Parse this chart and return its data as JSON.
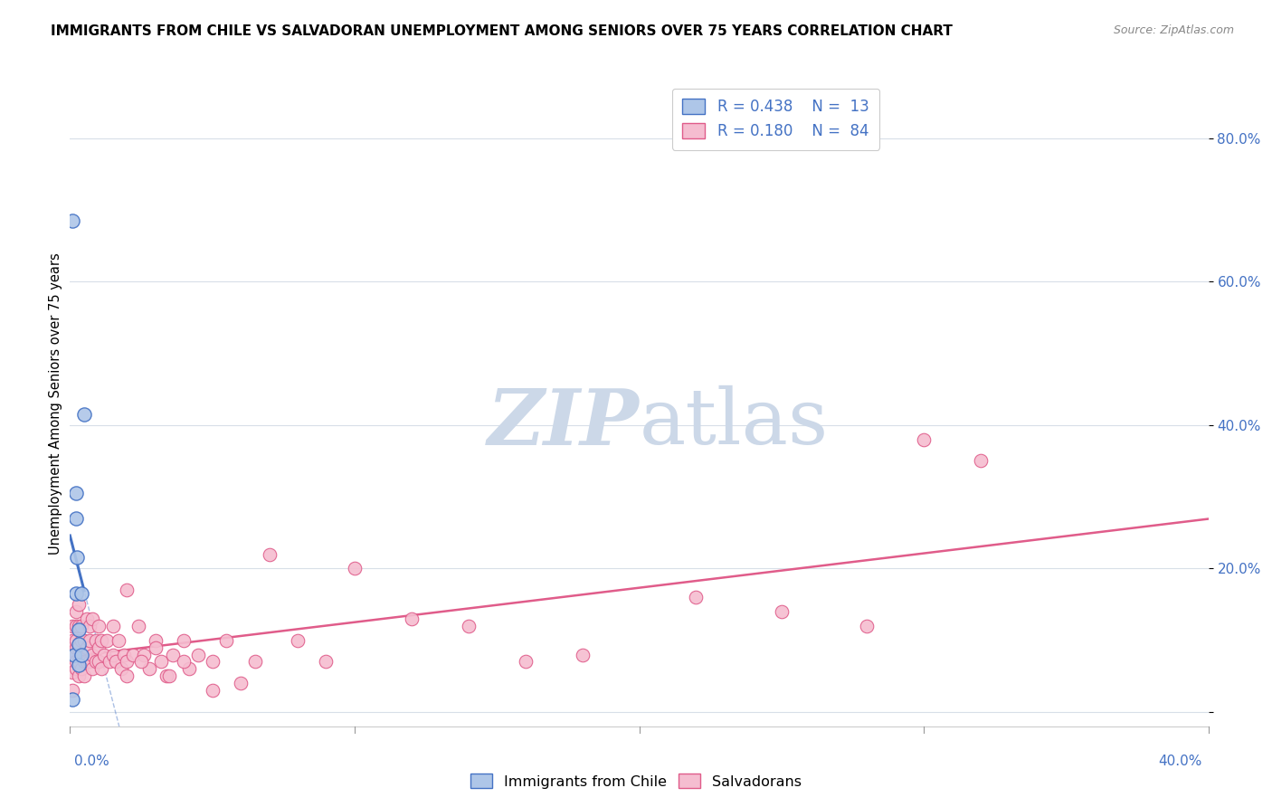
{
  "title": "IMMIGRANTS FROM CHILE VS SALVADORAN UNEMPLOYMENT AMONG SENIORS OVER 75 YEARS CORRELATION CHART",
  "source": "Source: ZipAtlas.com",
  "ylabel": "Unemployment Among Seniors over 75 years",
  "color_blue_fill": "#aec6e8",
  "color_blue_edge": "#4472C4",
  "color_blue_line": "#4472C4",
  "color_pink_fill": "#f5bdd0",
  "color_pink_edge": "#e05c8a",
  "color_pink_line": "#e05c8a",
  "color_grid": "#d8dfe8",
  "watermark_color": "#ccd8e8",
  "xlim": [
    0.0,
    0.4
  ],
  "ylim": [
    -0.02,
    0.88
  ],
  "yticks": [
    0.0,
    0.2,
    0.4,
    0.6,
    0.8
  ],
  "ytick_labels": [
    "",
    "20.0%",
    "40.0%",
    "60.0%",
    "80.0%"
  ],
  "chile_x": [
    0.001,
    0.0015,
    0.002,
    0.002,
    0.002,
    0.0025,
    0.003,
    0.003,
    0.003,
    0.004,
    0.004,
    0.005,
    0.001
  ],
  "chile_y": [
    0.685,
    0.08,
    0.305,
    0.27,
    0.165,
    0.215,
    0.115,
    0.095,
    0.065,
    0.08,
    0.165,
    0.415,
    0.018
  ],
  "salv_x": [
    0.001,
    0.001,
    0.001,
    0.001,
    0.001,
    0.002,
    0.002,
    0.002,
    0.002,
    0.002,
    0.002,
    0.003,
    0.003,
    0.003,
    0.003,
    0.003,
    0.004,
    0.004,
    0.004,
    0.004,
    0.005,
    0.005,
    0.005,
    0.006,
    0.006,
    0.006,
    0.007,
    0.007,
    0.007,
    0.008,
    0.008,
    0.008,
    0.009,
    0.009,
    0.01,
    0.01,
    0.01,
    0.011,
    0.011,
    0.012,
    0.013,
    0.014,
    0.015,
    0.015,
    0.016,
    0.017,
    0.018,
    0.019,
    0.02,
    0.02,
    0.022,
    0.024,
    0.026,
    0.028,
    0.03,
    0.032,
    0.034,
    0.036,
    0.04,
    0.042,
    0.045,
    0.05,
    0.055,
    0.06,
    0.065,
    0.07,
    0.08,
    0.09,
    0.1,
    0.12,
    0.14,
    0.16,
    0.18,
    0.22,
    0.25,
    0.28,
    0.3,
    0.32,
    0.02,
    0.025,
    0.03,
    0.035,
    0.04,
    0.05
  ],
  "salv_y": [
    0.055,
    0.03,
    0.08,
    0.1,
    0.12,
    0.06,
    0.09,
    0.12,
    0.14,
    0.1,
    0.07,
    0.05,
    0.09,
    0.12,
    0.07,
    0.15,
    0.08,
    0.12,
    0.06,
    0.1,
    0.05,
    0.1,
    0.07,
    0.09,
    0.13,
    0.07,
    0.1,
    0.07,
    0.12,
    0.08,
    0.13,
    0.06,
    0.1,
    0.07,
    0.09,
    0.12,
    0.07,
    0.1,
    0.06,
    0.08,
    0.1,
    0.07,
    0.12,
    0.08,
    0.07,
    0.1,
    0.06,
    0.08,
    0.07,
    0.05,
    0.08,
    0.12,
    0.08,
    0.06,
    0.1,
    0.07,
    0.05,
    0.08,
    0.1,
    0.06,
    0.08,
    0.07,
    0.1,
    0.04,
    0.07,
    0.22,
    0.1,
    0.07,
    0.2,
    0.13,
    0.12,
    0.07,
    0.08,
    0.16,
    0.14,
    0.12,
    0.38,
    0.35,
    0.17,
    0.07,
    0.09,
    0.05,
    0.07,
    0.03
  ]
}
